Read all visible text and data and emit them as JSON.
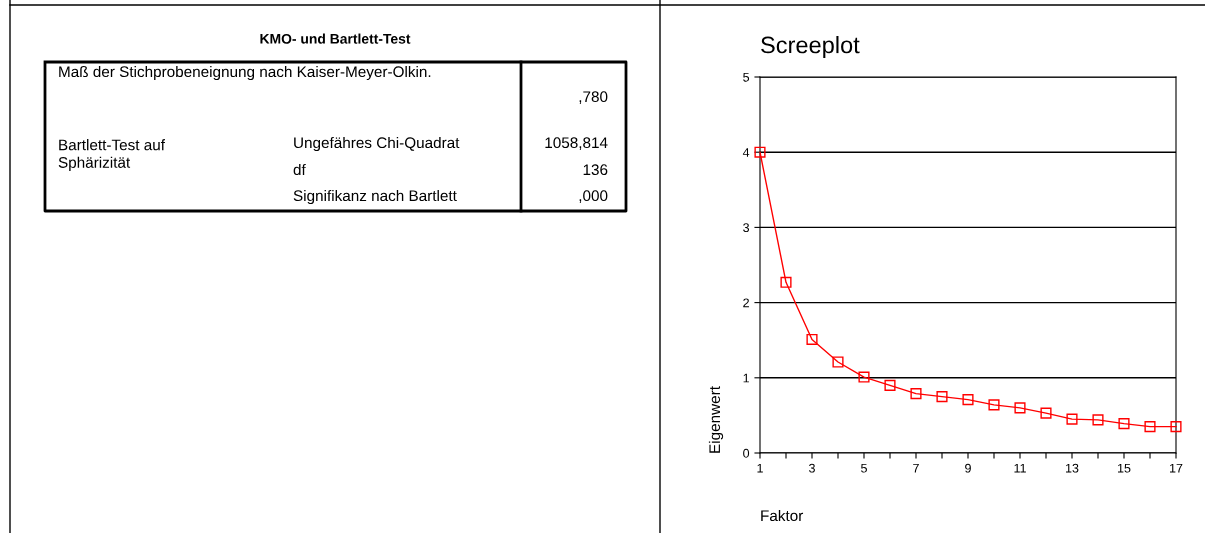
{
  "chart_data": [
    {
      "type": "other",
      "title": "KMO- und Bartlett-Test",
      "annotations": [
        "Maß der Stichprobeneignung nach Kaiser-Meyer-Olkin.",
        ",780",
        "Bartlett-Test auf\nSphärizität",
        "Ungefähres Chi-Quadrat",
        "1058,814",
        "df",
        "136",
        "Signifikanz nach Bartlett",
        ",000"
      ]
    },
    {
      "type": "line",
      "title": "Screeplot",
      "xlabel": "Faktor",
      "ylabel": "Eigenwert",
      "x": [
        1,
        2,
        3,
        4,
        5,
        6,
        7,
        8,
        9,
        10,
        11,
        12,
        13,
        14,
        15,
        16,
        17
      ],
      "series": [
        {
          "color": "#ff0000",
          "values": [
            4.0,
            2.27,
            1.51,
            1.21,
            1.01,
            0.9,
            0.79,
            0.75,
            0.71,
            0.64,
            0.6,
            0.53,
            0.45,
            0.44,
            0.39,
            0.35,
            0.35
          ]
        }
      ],
      "xlim": [
        1,
        17
      ],
      "xticks": [
        1,
        {
          "value": 2,
          "label": null
        },
        3,
        {
          "value": 4,
          "label": null
        },
        5,
        {
          "value": 6,
          "label": null
        },
        7,
        {
          "value": 8,
          "label": null
        },
        9,
        {
          "value": 10,
          "label": null
        },
        11,
        {
          "value": 12,
          "label": null
        },
        13,
        {
          "value": 14,
          "label": null
        },
        15,
        {
          "value": 16,
          "label": null
        },
        17
      ],
      "ylim": [
        0,
        5
      ],
      "yticks": [
        0,
        1,
        2,
        3,
        4,
        5
      ],
      "grid": "y",
      "marker": "square",
      "line_style": "solid",
      "legend": false
    }
  ]
}
